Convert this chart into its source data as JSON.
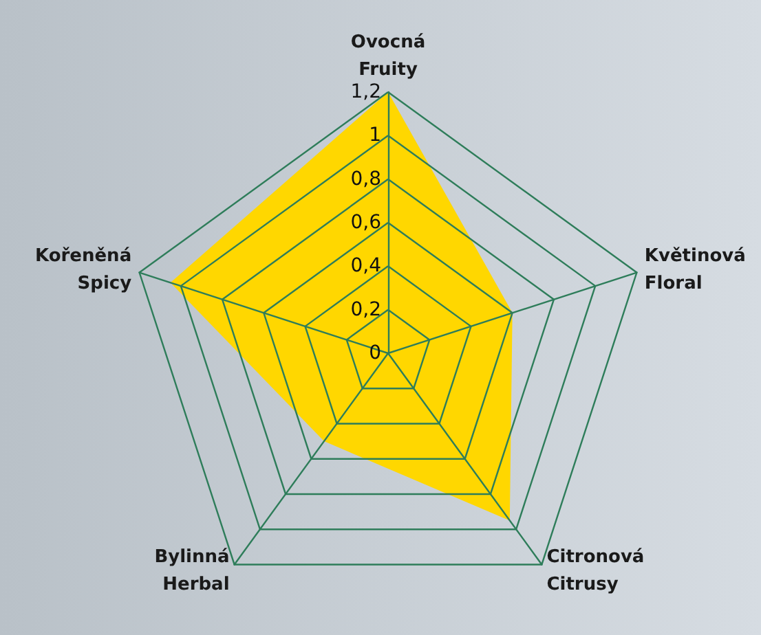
{
  "chart_data": {
    "type": "radar",
    "categories": [
      "Ovocná\nFruity",
      "Květinová\nFloral",
      "Citronová\nCitrusy",
      "Bylinná\nHerbal",
      "Kořeněná\nSpicy"
    ],
    "series": [
      {
        "color": "#ffd700",
        "values": [
          1.2,
          0.6,
          0.95,
          0.5,
          1.05
        ]
      }
    ],
    "ylim": [
      0,
      1.2
    ],
    "yticks": [
      {
        "value": 0,
        "label": "0"
      },
      {
        "value": 0.2,
        "label": "0,2"
      },
      {
        "value": 0.4,
        "label": "0,4"
      },
      {
        "value": 0.6,
        "label": "0,6"
      },
      {
        "value": 0.8,
        "label": "0,8"
      },
      {
        "value": 1,
        "label": "1"
      },
      {
        "value": 1.2,
        "label": "1,2"
      }
    ],
    "grid": true
  }
}
